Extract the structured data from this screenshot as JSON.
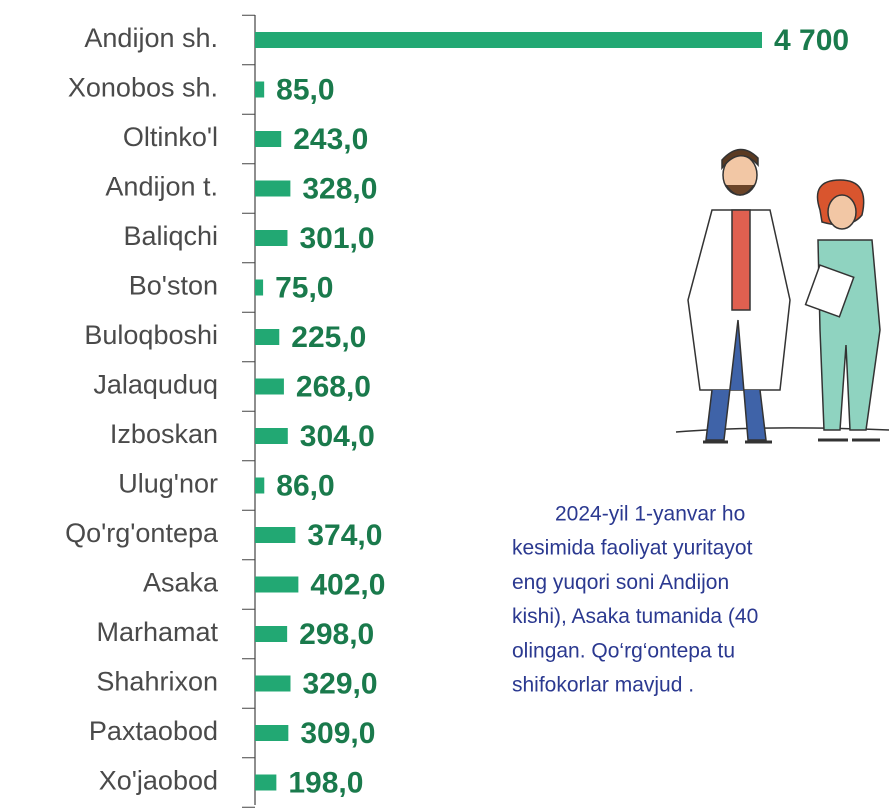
{
  "chart_data": {
    "type": "bar",
    "orientation": "horizontal",
    "categories": [
      "Andijon sh.",
      "Xonobos sh.",
      "Oltinko'l",
      "Andijon t.",
      "Baliqchi",
      "Bo'ston",
      "Buloqboshi",
      "Jalaquduq",
      "Izboskan",
      "Ulug'nor",
      "Qo'rg'ontepa",
      "Asaka",
      "Marhamat",
      "Shahrixon",
      "Paxtaobod",
      "Xo'jaobod"
    ],
    "values": [
      4700,
      85,
      243,
      328,
      301,
      75,
      225,
      268,
      304,
      86,
      374,
      402,
      298,
      329,
      309,
      198
    ],
    "value_labels": [
      "4 700",
      "85,0",
      "243,0",
      "328,0",
      "301,0",
      "75,0",
      "225,0",
      "268,0",
      "304,0",
      "86,0",
      "374,0",
      "402,0",
      "298,0",
      "329,0",
      "309,0",
      "198,0"
    ],
    "color": "#22a873",
    "annotation_lines": [
      "2024-yil 1-yanvar ho",
      "kesimida faoliyat yuritayot",
      "eng yuqori soni Andijon",
      "kishi), Asaka tumanida (40",
      "olingan. Qo‘rg‘ontepa tu",
      "shifokorlar mavjud ."
    ]
  }
}
